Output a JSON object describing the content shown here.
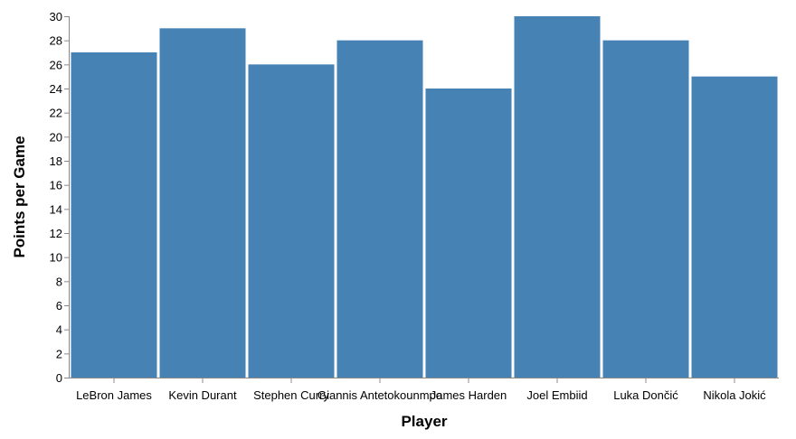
{
  "chart_data": {
    "type": "bar",
    "title": "",
    "xlabel": "Player",
    "ylabel": "Points per Game",
    "categories": [
      "LeBron James",
      "Kevin Durant",
      "Stephen Curry",
      "Giannis Antetokounmpo",
      "James Harden",
      "Joel Embiid",
      "Luka Dončić",
      "Nikola Jokić"
    ],
    "values": [
      27,
      29,
      26,
      28,
      24,
      30,
      28,
      25
    ],
    "ylim": [
      0,
      30
    ],
    "yticks": [
      0,
      2,
      4,
      6,
      8,
      10,
      12,
      14,
      16,
      18,
      20,
      22,
      24,
      26,
      28,
      30
    ],
    "grid": false,
    "legend": "none",
    "bar_color": "#4682b4",
    "axis_color": "#888888"
  }
}
